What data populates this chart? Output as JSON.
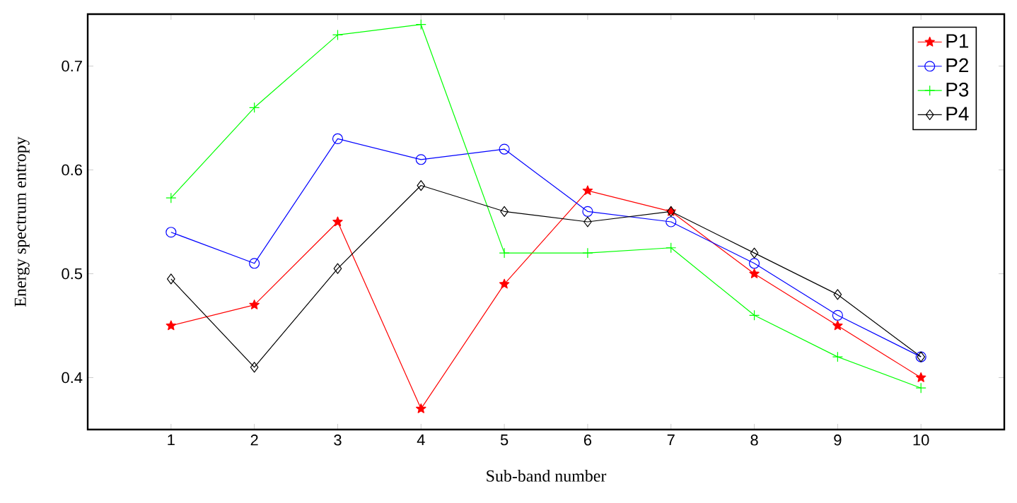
{
  "chart_data": {
    "type": "line",
    "xlabel": "Sub-band number",
    "ylabel": "Energy spectrum entropy",
    "x": [
      1,
      2,
      3,
      4,
      5,
      6,
      7,
      8,
      9,
      10
    ],
    "xlim": [
      0,
      11
    ],
    "xticks": [
      1,
      2,
      3,
      4,
      5,
      6,
      7,
      8,
      9,
      10
    ],
    "ylim": [
      0.35,
      0.75
    ],
    "yticks": [
      0.4,
      0.5,
      0.6,
      0.7
    ],
    "legend": "top right",
    "grid": false,
    "line_style": "solid",
    "series": [
      {
        "name": "P1",
        "color": "#ff0000",
        "marker": "star",
        "values": [
          0.45,
          0.47,
          0.55,
          0.37,
          0.49,
          0.58,
          0.56,
          0.5,
          0.45,
          0.4
        ]
      },
      {
        "name": "P2",
        "color": "#0000ff",
        "marker": "circle",
        "values": [
          0.54,
          0.51,
          0.63,
          0.61,
          0.62,
          0.56,
          0.55,
          0.51,
          0.46,
          0.42
        ]
      },
      {
        "name": "P3",
        "color": "#00ff00",
        "marker": "cross",
        "values": [
          0.573,
          0.66,
          0.73,
          0.74,
          0.52,
          0.52,
          0.525,
          0.46,
          0.42,
          0.39
        ]
      },
      {
        "name": "P4",
        "color": "#000000",
        "marker": "diamond",
        "values": [
          0.495,
          0.41,
          0.505,
          0.585,
          0.56,
          0.55,
          0.56,
          0.52,
          0.48,
          0.42
        ]
      }
    ]
  }
}
